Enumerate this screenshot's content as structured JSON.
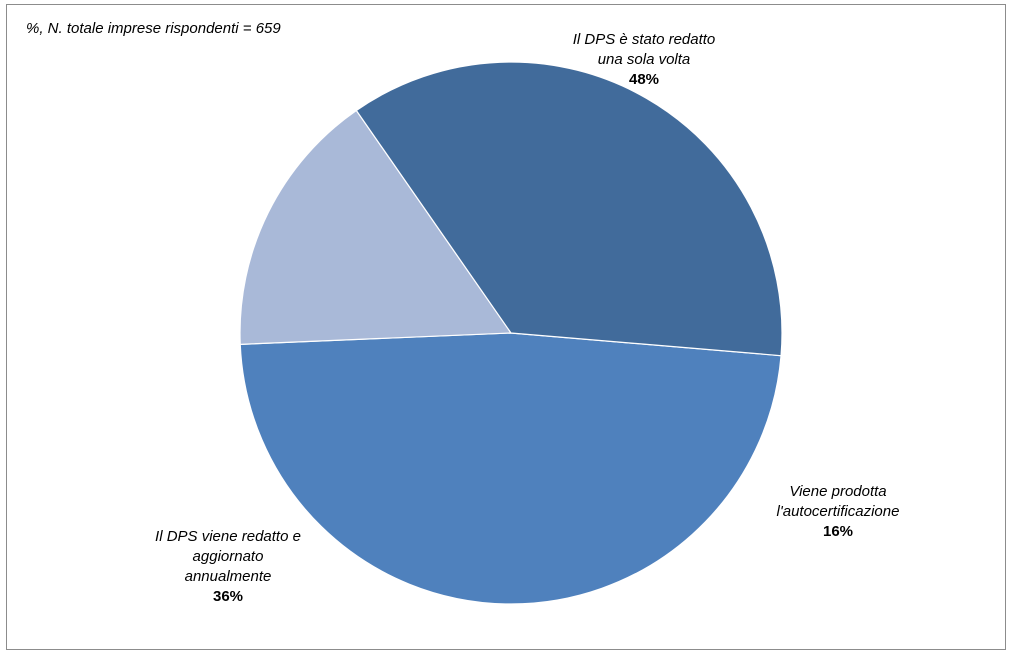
{
  "chart_data": {
    "type": "pie",
    "note": "%, N. totale imprese rispondenti = 659",
    "slices": [
      {
        "label_lines": [
          "Il DPS è stato redatto",
          "una sola volta"
        ],
        "value": 48,
        "value_label": "48%",
        "color": "#4f81bd"
      },
      {
        "label_lines": [
          "Viene prodotta",
          "l'autocertificazione"
        ],
        "value": 16,
        "value_label": "16%",
        "color": "#a9b9d8"
      },
      {
        "label_lines": [
          "Il DPS viene redatto e",
          "aggiornato",
          "annualmente"
        ],
        "value": 36,
        "value_label": "36%",
        "color": "#416b9b"
      }
    ],
    "slice_border_color": "#ffffff"
  }
}
